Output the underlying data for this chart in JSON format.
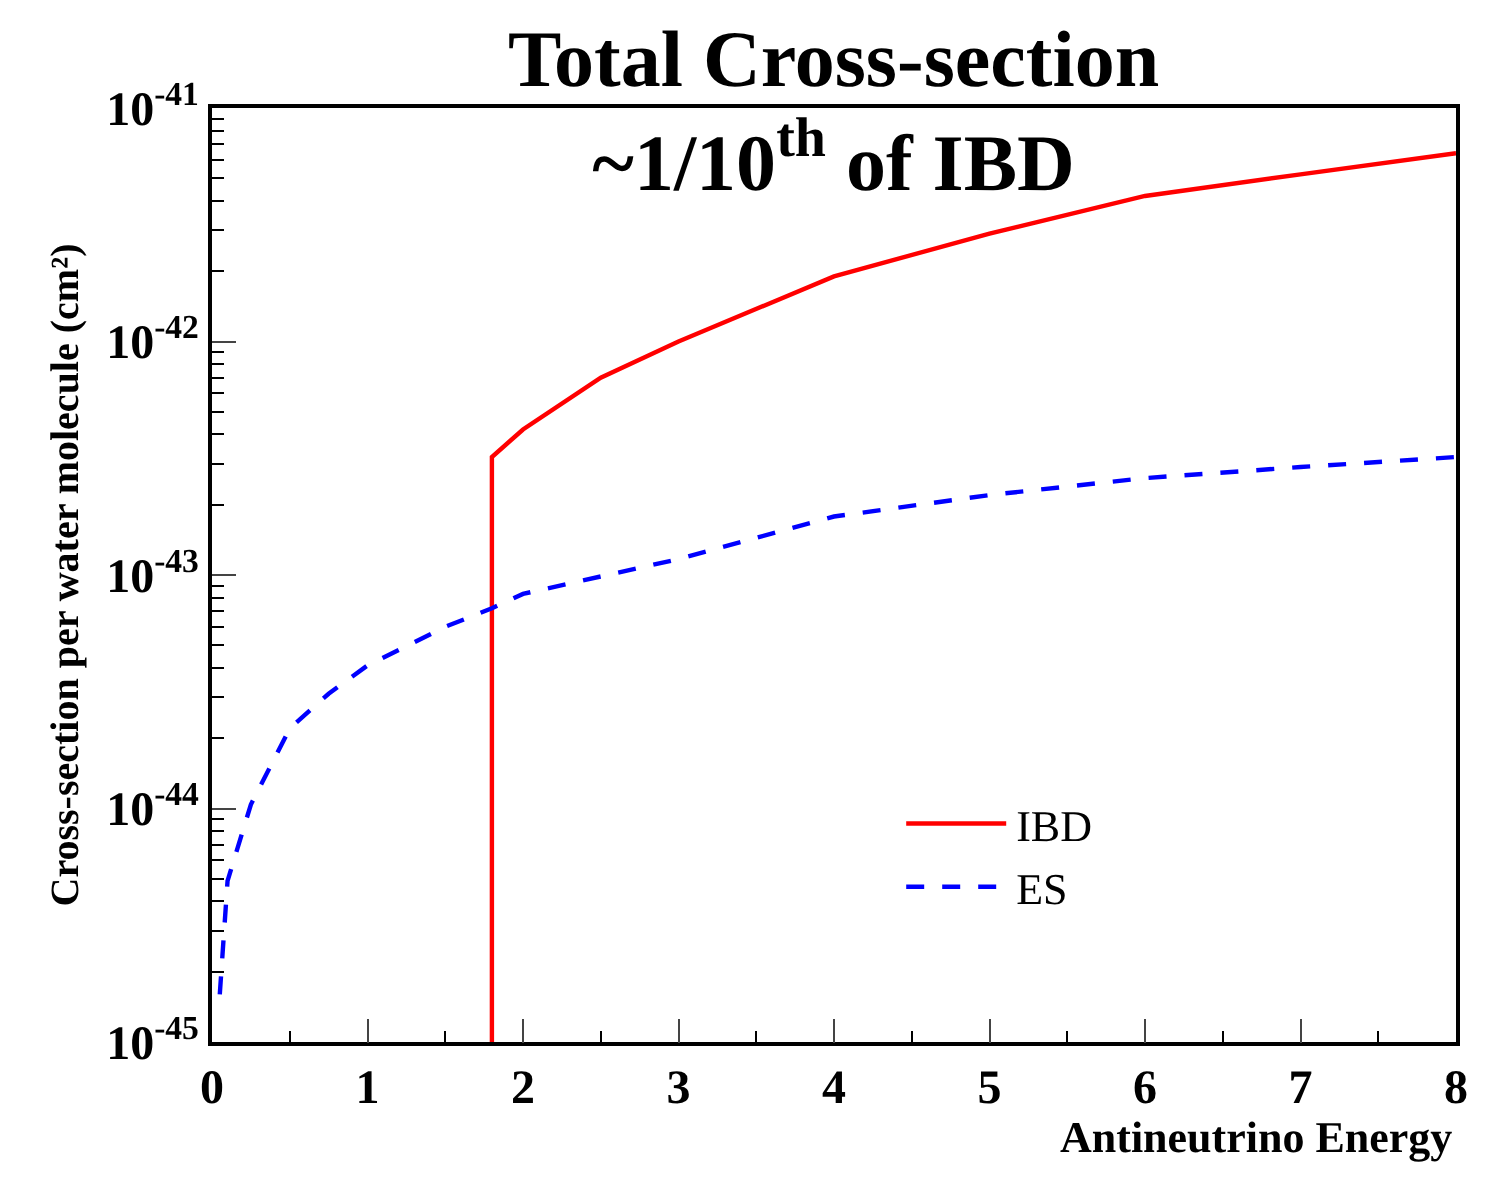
{
  "chart_data": {
    "type": "line",
    "title": "Total Cross-section\n~1/10$^{th}$ of IBD",
    "xlabel": "Antineutrino Energy",
    "ylabel": "Cross-section per water molecule (cm²)",
    "series": [
      {
        "name": "IBD",
        "color": "#ff0000",
        "line_style": "solid",
        "x": [
          1.8,
          1.8,
          2,
          2.5,
          3,
          4,
          5,
          6,
          7,
          8
        ],
        "values": [
          1e-45,
          3.2e-43,
          4.2e-43,
          7e-43,
          1e-42,
          1.9e-42,
          2.9e-42,
          4.2e-42,
          5.2e-42,
          6.4e-42
        ]
      },
      {
        "name": "ES",
        "color": "#0000ff",
        "line_style": "dashed",
        "x": [
          0.05,
          0.1,
          0.25,
          0.5,
          0.75,
          1,
          1.5,
          1.8,
          2,
          3,
          4,
          5,
          6,
          7,
          8
        ],
        "values": [
          1.6e-45,
          4.9e-45,
          1.04e-44,
          2.2e-44,
          3.1e-44,
          4.1e-44,
          6e-44,
          7.2e-44,
          8.3e-44,
          1.17e-43,
          1.78e-43,
          2.2e-43,
          2.6e-43,
          2.9e-43,
          3.2e-43
        ]
      }
    ],
    "xlim": [
      0,
      8
    ],
    "xticks": [
      0,
      1,
      2,
      3,
      4,
      5,
      6,
      7,
      8
    ],
    "ylim": [
      1e-45,
      1e-41
    ],
    "log": "y",
    "yticks": [
      {
        "value": 1e-45,
        "label": "10$^{-45}$"
      },
      {
        "value": 1e-44,
        "label": "10$^{-44}$"
      },
      {
        "value": 1e-43,
        "label": "10$^{-43}$"
      },
      {
        "value": 1e-42,
        "label": "10$^{-42}$"
      },
      {
        "value": 1e-41,
        "label": "10$^{-41}$"
      }
    ],
    "legend": "bottom right",
    "marker": "none"
  }
}
